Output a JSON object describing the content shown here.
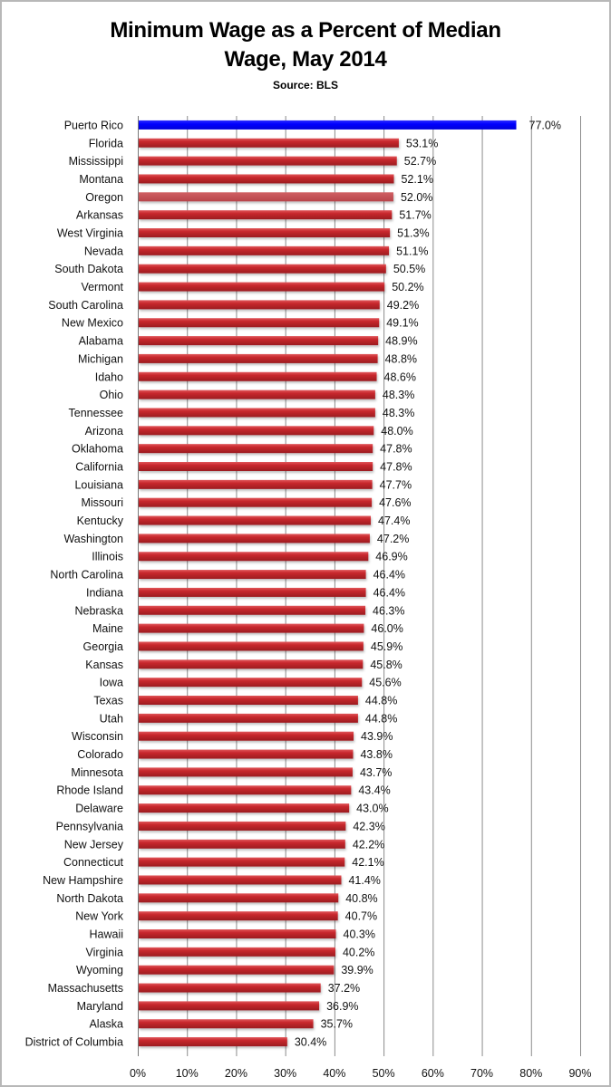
{
  "chart_data": {
    "type": "bar",
    "orientation": "horizontal",
    "title": "Minimum Wage as a Percent of Median Wage, May 2014",
    "title_lines": [
      "Minimum Wage as a Percent of Median",
      "Wage, May 2014"
    ],
    "subtitle": "Source: BLS",
    "xlabel": "",
    "ylabel": "",
    "xlim": [
      0,
      90
    ],
    "x_ticks": [
      0,
      10,
      20,
      30,
      40,
      50,
      60,
      70,
      80,
      90
    ],
    "x_tick_labels": [
      "0%",
      "10%",
      "20%",
      "30%",
      "40%",
      "50%",
      "60%",
      "70%",
      "80%",
      "90%"
    ],
    "grid": "vertical",
    "legend": "none",
    "colors": {
      "default_bar": "#c0282c",
      "highlight_bar": "#0000ff",
      "oregon_bar": "#c5474b",
      "grid": "#8c8c8c"
    },
    "categories": [
      "Puerto Rico",
      "Florida",
      "Mississippi",
      "Montana",
      "Oregon",
      "Arkansas",
      "West Virginia",
      "Nevada",
      "South Dakota",
      "Vermont",
      "South Carolina",
      "New Mexico",
      "Alabama",
      "Michigan",
      "Idaho",
      "Ohio",
      "Tennessee",
      "Arizona",
      "Oklahoma",
      "California",
      "Louisiana",
      "Missouri",
      "Kentucky",
      "Washington",
      "Illinois",
      "North Carolina",
      "Indiana",
      "Nebraska",
      "Maine",
      "Georgia",
      "Kansas",
      "Iowa",
      "Texas",
      "Utah",
      "Wisconsin",
      "Colorado",
      "Minnesota",
      "Rhode Island",
      "Delaware",
      "Pennsylvania",
      "New Jersey",
      "Connecticut",
      "New Hampshire",
      "North Dakota",
      "New York",
      "Hawaii",
      "Virginia",
      "Wyoming",
      "Massachusetts",
      "Maryland",
      "Alaska",
      "District of Columbia"
    ],
    "values": [
      77.0,
      53.1,
      52.7,
      52.1,
      52.0,
      51.7,
      51.3,
      51.1,
      50.5,
      50.2,
      49.2,
      49.1,
      48.9,
      48.8,
      48.6,
      48.3,
      48.3,
      48.0,
      47.8,
      47.8,
      47.7,
      47.6,
      47.4,
      47.2,
      46.9,
      46.4,
      46.4,
      46.3,
      46.0,
      45.9,
      45.8,
      45.6,
      44.8,
      44.8,
      43.9,
      43.8,
      43.7,
      43.4,
      43.0,
      42.3,
      42.2,
      42.1,
      41.4,
      40.8,
      40.7,
      40.3,
      40.2,
      39.9,
      37.2,
      36.9,
      35.7,
      30.4
    ],
    "value_labels": [
      "77.0%",
      "53.1%",
      "52.7%",
      "52.1%",
      "52.0%",
      "51.7%",
      "51.3%",
      "51.1%",
      "50.5%",
      "50.2%",
      "49.2%",
      "49.1%",
      "48.9%",
      "48.8%",
      "48.6%",
      "48.3%",
      "48.3%",
      "48.0%",
      "47.8%",
      "47.8%",
      "47.7%",
      "47.6%",
      "47.4%",
      "47.2%",
      "46.9%",
      "46.4%",
      "46.4%",
      "46.3%",
      "46.0%",
      "45.9%",
      "45.8%",
      "45.6%",
      "44.8%",
      "44.8%",
      "43.9%",
      "43.8%",
      "43.7%",
      "43.4%",
      "43.0%",
      "42.3%",
      "42.2%",
      "42.1%",
      "41.4%",
      "40.8%",
      "40.7%",
      "40.3%",
      "40.2%",
      "39.9%",
      "37.2%",
      "36.9%",
      "35.7%",
      "30.4%"
    ],
    "highlighted_category": "Puerto Rico"
  }
}
